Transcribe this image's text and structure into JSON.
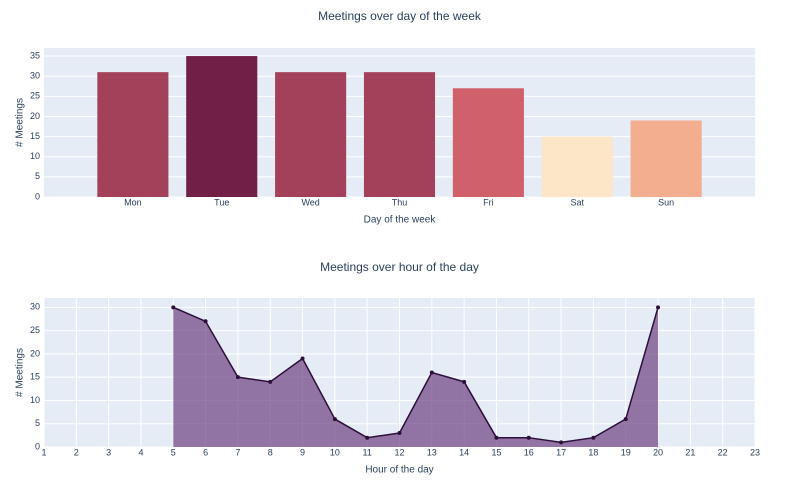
{
  "chart_data": [
    {
      "type": "bar",
      "title": "Meetings over day of the week",
      "x_label": "Day of the week",
      "y_label": "# Meetings",
      "categories": [
        "Mon",
        "Tue",
        "Wed",
        "Thu",
        "Fri",
        "Sat",
        "Sun"
      ],
      "values": [
        31,
        35,
        31,
        31,
        27,
        15,
        19
      ],
      "colors": [
        "#a3415b",
        "#721f47",
        "#a3415b",
        "#a3415b",
        "#d0606a",
        "#fde5c8",
        "#f3ae90"
      ],
      "ylim": [
        0,
        37
      ],
      "yticks": [
        0,
        5,
        10,
        15,
        20,
        25,
        30,
        35
      ],
      "grid": true
    },
    {
      "type": "area",
      "title": "Meetings over hour of the day",
      "x_label": "Hour of the day",
      "y_label": "# Meetings",
      "x": [
        5,
        6,
        7,
        8,
        9,
        10,
        11,
        12,
        13,
        14,
        15,
        16,
        17,
        18,
        19,
        20
      ],
      "series": [
        {
          "color": "#2d0f3c",
          "fill": "rgba(100,50,120,0.65)",
          "values": [
            30,
            27,
            15,
            14,
            19,
            6,
            2,
            3,
            16,
            14,
            2,
            2,
            1,
            2,
            6,
            30
          ]
        }
      ],
      "xlim": [
        1,
        23
      ],
      "xticks": [
        1,
        2,
        3,
        4,
        5,
        6,
        7,
        8,
        9,
        10,
        11,
        12,
        13,
        14,
        15,
        16,
        17,
        18,
        19,
        20,
        21,
        22,
        23
      ],
      "ylim": [
        0,
        32
      ],
      "yticks": [
        0,
        5,
        10,
        15,
        20,
        25,
        30
      ],
      "grid": true
    }
  ]
}
